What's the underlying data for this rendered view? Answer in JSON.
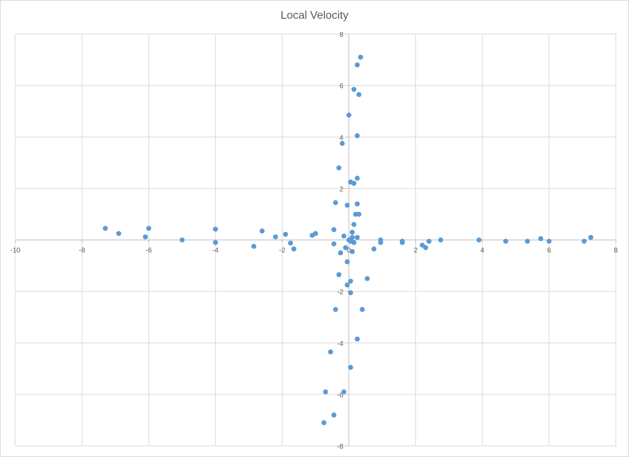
{
  "chart_data": {
    "type": "scatter",
    "title": "Local Velocity",
    "xlabel": "",
    "ylabel": "",
    "xlim": [
      -10,
      8
    ],
    "ylim": [
      -8,
      8
    ],
    "x_ticks": [
      -10,
      -8,
      -6,
      -4,
      -2,
      0,
      2,
      4,
      6,
      8
    ],
    "y_ticks": [
      -8,
      -6,
      -4,
      -2,
      2,
      4,
      6,
      8
    ],
    "grid": true,
    "legend": "none",
    "marker_color": "#5b9bd5",
    "series": [
      {
        "points": [
          [
            -7.3,
            0.45
          ],
          [
            -6.9,
            0.25
          ],
          [
            -6.1,
            0.12
          ],
          [
            -6.0,
            0.45
          ],
          [
            -5.0,
            0.0
          ],
          [
            -4.0,
            0.42
          ],
          [
            -4.0,
            -0.1
          ],
          [
            -2.6,
            0.35
          ],
          [
            -2.2,
            0.12
          ],
          [
            -1.9,
            0.22
          ],
          [
            -1.75,
            -0.12
          ],
          [
            -1.65,
            -0.35
          ],
          [
            -2.85,
            -0.25
          ],
          [
            -1.1,
            0.18
          ],
          [
            -1.0,
            0.25
          ],
          [
            -0.45,
            0.4
          ],
          [
            -0.45,
            -0.15
          ],
          [
            -0.25,
            -0.5
          ],
          [
            -0.15,
            0.15
          ],
          [
            -0.1,
            -0.3
          ],
          [
            0.0,
            0.0
          ],
          [
            0.05,
            -0.05
          ],
          [
            0.1,
            0.1
          ],
          [
            0.15,
            -0.1
          ],
          [
            0.1,
            0.3
          ],
          [
            0.15,
            0.6
          ],
          [
            0.25,
            0.1
          ],
          [
            0.1,
            -0.45
          ],
          [
            0.2,
            1.0
          ],
          [
            0.25,
            1.4
          ],
          [
            0.3,
            1.0
          ],
          [
            -0.05,
            1.35
          ],
          [
            -0.4,
            1.45
          ],
          [
            0.05,
            2.25
          ],
          [
            0.15,
            2.2
          ],
          [
            0.25,
            2.4
          ],
          [
            -0.3,
            2.8
          ],
          [
            -0.2,
            3.75
          ],
          [
            0.25,
            4.05
          ],
          [
            0.0,
            4.85
          ],
          [
            0.15,
            5.85
          ],
          [
            0.3,
            5.65
          ],
          [
            0.25,
            6.8
          ],
          [
            0.35,
            7.1
          ],
          [
            0.95,
            0.0
          ],
          [
            0.95,
            -0.1
          ],
          [
            0.75,
            -0.35
          ],
          [
            1.6,
            -0.05
          ],
          [
            1.6,
            -0.1
          ],
          [
            2.2,
            -0.2
          ],
          [
            2.3,
            -0.3
          ],
          [
            2.4,
            -0.05
          ],
          [
            2.75,
            0.0
          ],
          [
            3.9,
            0.0
          ],
          [
            4.7,
            -0.05
          ],
          [
            5.35,
            -0.05
          ],
          [
            5.75,
            0.05
          ],
          [
            6.0,
            -0.05
          ],
          [
            7.05,
            -0.05
          ],
          [
            7.25,
            0.1
          ],
          [
            -0.05,
            -0.85
          ],
          [
            -0.05,
            -1.75
          ],
          [
            -0.3,
            -1.35
          ],
          [
            0.05,
            -1.6
          ],
          [
            0.05,
            -2.05
          ],
          [
            0.55,
            -1.5
          ],
          [
            0.4,
            -2.7
          ],
          [
            -0.4,
            -2.7
          ],
          [
            0.25,
            -3.85
          ],
          [
            -0.55,
            -4.35
          ],
          [
            0.05,
            -4.95
          ],
          [
            -0.15,
            -5.9
          ],
          [
            -0.7,
            -5.9
          ],
          [
            -0.45,
            -6.8
          ],
          [
            -0.75,
            -7.1
          ]
        ]
      }
    ]
  }
}
